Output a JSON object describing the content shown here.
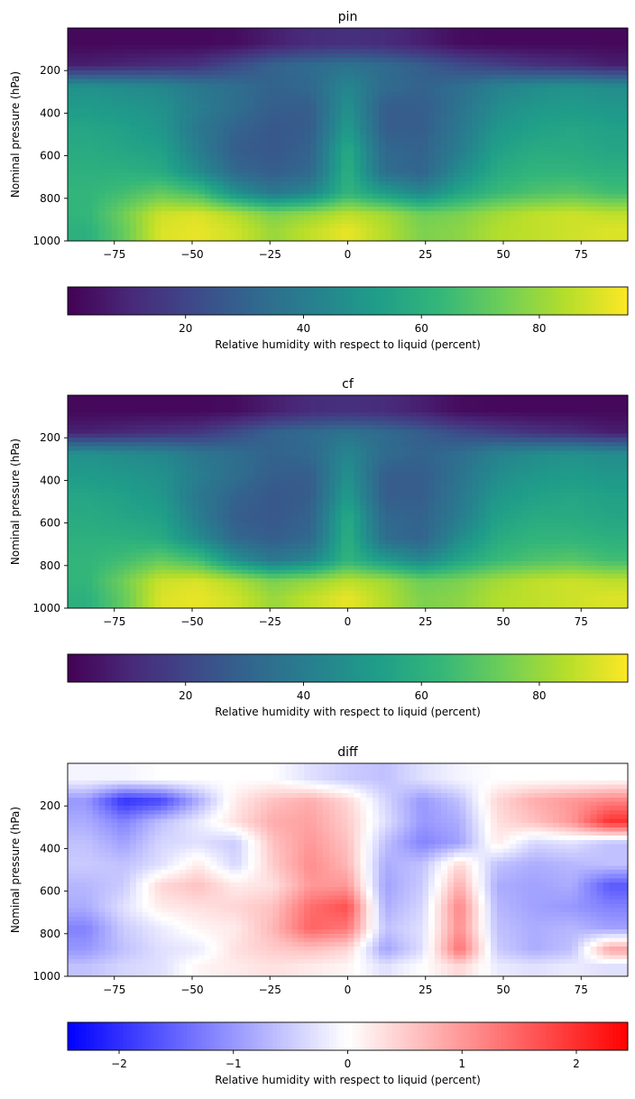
{
  "chart_data": [
    {
      "type": "heatmap",
      "title": "pin",
      "xlabel": "",
      "ylabel": "Nominal pressure (hPa)",
      "xlim": [
        -90,
        90
      ],
      "ylim": [
        1000,
        0
      ],
      "x_ticks": [
        -75,
        -50,
        -25,
        0,
        25,
        50,
        75
      ],
      "x_tick_labels": [
        "−75",
        "−50",
        "−25",
        "0",
        "25",
        "50",
        "75"
      ],
      "y_ticks": [
        200,
        400,
        600,
        800,
        1000
      ],
      "y_tick_labels": [
        "200",
        "400",
        "600",
        "800",
        "1000"
      ],
      "colormap": "viridis",
      "colorbar": {
        "label": "Relative humidity with respect to liquid (percent)",
        "vmin": 0,
        "vmax": 95,
        "ticks": [
          20,
          40,
          60,
          80
        ],
        "tick_labels": [
          "20",
          "40",
          "60",
          "80"
        ]
      },
      "x": [
        -84,
        -72,
        -60,
        -48,
        -36,
        -24,
        -12,
        0,
        12,
        24,
        36,
        48,
        60,
        72,
        84
      ],
      "y": [
        75,
        175,
        275,
        375,
        475,
        575,
        675,
        775,
        875,
        950
      ],
      "z": [
        [
          2,
          2,
          2,
          2,
          3,
          8,
          12,
          13,
          12,
          8,
          3,
          2,
          2,
          2,
          2
        ],
        [
          8,
          10,
          12,
          14,
          22,
          30,
          33,
          36,
          33,
          28,
          22,
          18,
          14,
          12,
          8
        ],
        [
          48,
          46,
          44,
          38,
          34,
          30,
          32,
          44,
          33,
          30,
          34,
          42,
          46,
          48,
          46
        ],
        [
          52,
          50,
          48,
          40,
          34,
          28,
          28,
          48,
          28,
          28,
          36,
          46,
          50,
          52,
          50
        ],
        [
          56,
          54,
          50,
          38,
          30,
          26,
          28,
          52,
          28,
          28,
          38,
          50,
          54,
          56,
          54
        ],
        [
          58,
          56,
          54,
          40,
          28,
          26,
          30,
          58,
          32,
          30,
          40,
          54,
          58,
          58,
          56
        ],
        [
          60,
          60,
          58,
          46,
          32,
          28,
          32,
          60,
          34,
          30,
          46,
          58,
          62,
          62,
          60
        ],
        [
          62,
          66,
          72,
          66,
          48,
          38,
          44,
          62,
          52,
          44,
          56,
          64,
          68,
          70,
          66
        ],
        [
          62,
          74,
          88,
          90,
          84,
          76,
          80,
          86,
          82,
          74,
          76,
          82,
          86,
          88,
          86
        ],
        [
          60,
          72,
          90,
          92,
          88,
          80,
          86,
          92,
          84,
          76,
          78,
          84,
          86,
          88,
          90
        ]
      ]
    },
    {
      "type": "heatmap",
      "title": "cf",
      "xlabel": "",
      "ylabel": "Nominal pressure (hPa)",
      "xlim": [
        -90,
        90
      ],
      "ylim": [
        1000,
        0
      ],
      "x_ticks": [
        -75,
        -50,
        -25,
        0,
        25,
        50,
        75
      ],
      "x_tick_labels": [
        "−75",
        "−50",
        "−25",
        "0",
        "25",
        "50",
        "75"
      ],
      "y_ticks": [
        200,
        400,
        600,
        800,
        1000
      ],
      "y_tick_labels": [
        "200",
        "400",
        "600",
        "800",
        "1000"
      ],
      "colormap": "viridis",
      "colorbar": {
        "label": "Relative humidity with respect to liquid (percent)",
        "vmin": 0,
        "vmax": 95,
        "ticks": [
          20,
          40,
          60,
          80
        ],
        "tick_labels": [
          "20",
          "40",
          "60",
          "80"
        ]
      },
      "x": [
        -84,
        -72,
        -60,
        -48,
        -36,
        -24,
        -12,
        0,
        12,
        24,
        36,
        48,
        60,
        72,
        84
      ],
      "y": [
        75,
        175,
        275,
        375,
        475,
        575,
        675,
        775,
        875,
        950
      ],
      "z": [
        [
          2,
          2,
          2,
          2,
          3,
          8,
          12,
          13,
          12,
          8,
          3,
          2,
          2,
          2,
          2
        ],
        [
          9,
          11,
          13,
          15,
          22,
          30,
          33,
          36,
          33,
          28,
          22,
          18,
          14,
          12,
          8
        ],
        [
          48,
          46,
          44,
          38,
          34,
          30,
          32,
          44,
          33,
          30,
          34,
          42,
          46,
          48,
          46
        ],
        [
          52,
          50,
          48,
          40,
          34,
          28,
          28,
          48,
          28,
          28,
          36,
          46,
          50,
          52,
          50
        ],
        [
          56,
          54,
          50,
          38,
          30,
          26,
          28,
          52,
          28,
          28,
          38,
          50,
          54,
          56,
          54
        ],
        [
          58,
          56,
          54,
          40,
          28,
          26,
          30,
          58,
          32,
          30,
          40,
          54,
          58,
          58,
          56
        ],
        [
          60,
          60,
          58,
          46,
          32,
          28,
          32,
          60,
          34,
          30,
          46,
          58,
          62,
          62,
          60
        ],
        [
          62,
          66,
          72,
          66,
          48,
          38,
          44,
          62,
          52,
          44,
          56,
          64,
          68,
          70,
          66
        ],
        [
          62,
          74,
          88,
          90,
          84,
          76,
          80,
          86,
          82,
          74,
          76,
          82,
          86,
          88,
          86
        ],
        [
          60,
          72,
          90,
          92,
          88,
          80,
          86,
          92,
          84,
          76,
          78,
          84,
          86,
          88,
          90
        ]
      ]
    },
    {
      "type": "heatmap",
      "title": "diff",
      "xlabel": "",
      "ylabel": "Nominal pressure (hPa)",
      "xlim": [
        -90,
        90
      ],
      "ylim": [
        1000,
        0
      ],
      "x_ticks": [
        -75,
        -50,
        -25,
        0,
        25,
        50,
        75
      ],
      "x_tick_labels": [
        "−75",
        "−50",
        "−25",
        "0",
        "25",
        "50",
        "75"
      ],
      "y_ticks": [
        200,
        400,
        600,
        800,
        1000
      ],
      "y_tick_labels": [
        "200",
        "400",
        "600",
        "800",
        "1000"
      ],
      "colormap": "bwr",
      "colorbar": {
        "label": "Relative humidity with respect to liquid (percent)",
        "vmin": -2.45,
        "vmax": 2.45,
        "ticks": [
          -2,
          -1,
          0,
          1,
          2
        ],
        "tick_labels": [
          "−2",
          "−1",
          "0",
          "1",
          "2"
        ]
      },
      "x": [
        -84,
        -72,
        -60,
        -48,
        -36,
        -24,
        -12,
        0,
        12,
        24,
        36,
        48,
        60,
        72,
        84
      ],
      "y": [
        75,
        175,
        275,
        375,
        475,
        575,
        675,
        775,
        875,
        950
      ],
      "z": [
        [
          -0.1,
          -0.1,
          0,
          0,
          0,
          0,
          -0.3,
          -0.5,
          -0.6,
          -0.3,
          -0.1,
          0,
          0,
          0,
          0
        ],
        [
          -1.0,
          -2.0,
          -1.8,
          -0.8,
          0.2,
          0.6,
          0.8,
          0.4,
          -0.4,
          -1.0,
          -0.6,
          0.4,
          0.8,
          1.0,
          1.2
        ],
        [
          -0.8,
          -1.2,
          -0.6,
          -0.2,
          0.3,
          0.8,
          0.9,
          0.5,
          -0.3,
          -1.0,
          -0.8,
          0.3,
          0.6,
          1.0,
          2.0
        ],
        [
          -0.6,
          -0.9,
          -0.4,
          -0.3,
          -0.5,
          0.6,
          1.0,
          0.6,
          -0.6,
          -1.2,
          -0.9,
          0.2,
          -0.4,
          -0.3,
          -0.6
        ],
        [
          -0.5,
          -0.6,
          -0.3,
          0.2,
          -0.4,
          0.5,
          1.1,
          0.7,
          -0.8,
          -0.6,
          0.4,
          -0.6,
          -0.8,
          -0.7,
          -0.6
        ],
        [
          -0.7,
          -0.5,
          0.4,
          0.6,
          0.2,
          0.3,
          1.0,
          1.0,
          -0.9,
          -0.5,
          0.8,
          -0.8,
          -0.9,
          -0.8,
          -1.6
        ],
        [
          -0.8,
          -0.3,
          0.2,
          0.3,
          0.4,
          0.6,
          1.4,
          1.7,
          -0.8,
          -0.4,
          1.2,
          -0.7,
          -0.9,
          -1.0,
          -1.2
        ],
        [
          -1.2,
          -0.5,
          -0.2,
          0.1,
          0.2,
          0.7,
          1.5,
          1.3,
          -0.6,
          -0.3,
          1.1,
          -0.6,
          -0.8,
          -0.7,
          -0.9
        ],
        [
          -1.0,
          -0.6,
          -0.3,
          -0.2,
          0.3,
          0.5,
          0.6,
          0.4,
          -0.9,
          -0.3,
          1.4,
          -0.5,
          -0.8,
          -0.6,
          0.9
        ],
        [
          -0.6,
          -0.4,
          -0.3,
          0.1,
          0.2,
          0.3,
          0.2,
          0.1,
          -0.3,
          0,
          0.4,
          -0.2,
          -0.3,
          -0.2,
          -0.3
        ]
      ]
    }
  ]
}
